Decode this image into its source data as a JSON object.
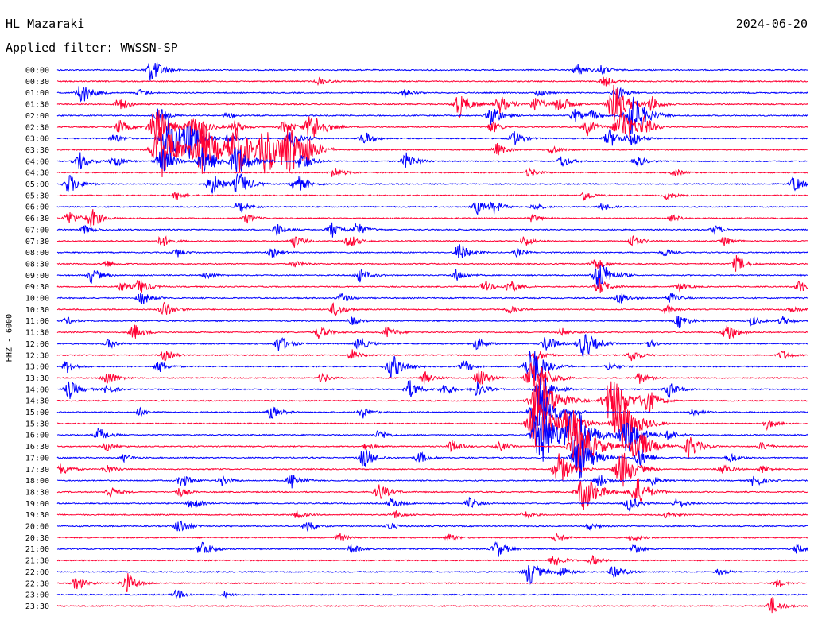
{
  "header": {
    "station": "HL Mazaraki",
    "date": "2024-06-20",
    "filter": "Applied filter: WWSSN-SP"
  },
  "y_axis_label": "HHZ - 6000",
  "colors": {
    "odd_trace": "#0000ff",
    "even_trace": "#ff0033"
  },
  "chart_data": {
    "type": "line",
    "title": "",
    "xlabel": "",
    "ylabel": "HHZ - 6000",
    "trace_length_minutes": 30,
    "xlim": [
      0,
      30
    ],
    "rows": [
      {
        "label": "00:00",
        "events": [
          [
            3.8,
            1.6
          ],
          [
            20.8,
            0.8
          ],
          [
            21.8,
            0.6
          ]
        ]
      },
      {
        "label": "00:30",
        "events": [
          [
            10.5,
            0.5
          ],
          [
            21.9,
            0.7
          ]
        ]
      },
      {
        "label": "01:00",
        "events": [
          [
            1.0,
            1.4
          ],
          [
            3.3,
            0.5
          ],
          [
            13.9,
            0.6
          ],
          [
            19.3,
            0.5
          ],
          [
            22.4,
            0.9
          ]
        ]
      },
      {
        "label": "01:30",
        "events": [
          [
            2.5,
            0.9
          ],
          [
            16.1,
            1.6
          ],
          [
            17.7,
            1.2
          ],
          [
            19.1,
            1.0
          ],
          [
            20.1,
            1.2
          ],
          [
            22.3,
            2.6
          ],
          [
            23.8,
            0.9
          ]
        ]
      },
      {
        "label": "02:00",
        "events": [
          [
            4.1,
            1.0
          ],
          [
            6.8,
            0.5
          ],
          [
            17.4,
            1.3
          ],
          [
            20.7,
            0.8
          ],
          [
            21.4,
            0.6
          ],
          [
            23.0,
            2.7
          ]
        ]
      },
      {
        "label": "02:30",
        "events": [
          [
            2.5,
            0.9
          ],
          [
            4.0,
            2.6
          ],
          [
            5.5,
            1.8
          ],
          [
            7.1,
            0.8
          ],
          [
            9.1,
            1.0
          ],
          [
            10.2,
            2.0
          ],
          [
            17.4,
            0.8
          ],
          [
            21.2,
            1.1
          ],
          [
            22.6,
            2.4
          ],
          [
            23.5,
            1.0
          ]
        ]
      },
      {
        "label": "03:00",
        "events": [
          [
            2.3,
            0.6
          ],
          [
            4.5,
            2.9
          ],
          [
            5.3,
            2.1
          ],
          [
            6.9,
            0.7
          ],
          [
            9.4,
            1.2
          ],
          [
            12.3,
            0.9
          ],
          [
            18.3,
            0.9
          ],
          [
            22.1,
            1.2
          ],
          [
            23.0,
            1.0
          ]
        ]
      },
      {
        "label": "03:30",
        "events": [
          [
            4.2,
            3.5
          ],
          [
            5.8,
            3.5
          ],
          [
            7.2,
            3.4
          ],
          [
            8.4,
            2.8
          ],
          [
            9.3,
            3.0
          ],
          [
            10.0,
            1.2
          ],
          [
            17.6,
            0.8
          ],
          [
            19.8,
            0.6
          ]
        ]
      },
      {
        "label": "04:00",
        "events": [
          [
            0.9,
            1.2
          ],
          [
            2.3,
            0.8
          ],
          [
            4.2,
            1.7
          ],
          [
            5.9,
            2.0
          ],
          [
            7.2,
            2.1
          ],
          [
            9.8,
            1.2
          ],
          [
            14.0,
            1.1
          ],
          [
            20.2,
            0.8
          ],
          [
            23.2,
            0.7
          ]
        ]
      },
      {
        "label": "04:30",
        "events": [
          [
            11.1,
            0.8
          ],
          [
            18.9,
            0.6
          ],
          [
            24.7,
            0.5
          ]
        ]
      },
      {
        "label": "05:00",
        "events": [
          [
            0.5,
            1.3
          ],
          [
            6.2,
            1.4
          ],
          [
            7.3,
            1.5
          ],
          [
            9.6,
            1.2
          ],
          [
            29.5,
            1.0
          ]
        ]
      },
      {
        "label": "05:30",
        "events": [
          [
            4.8,
            0.6
          ],
          [
            21.1,
            0.7
          ],
          [
            24.4,
            0.5
          ]
        ]
      },
      {
        "label": "06:00",
        "events": [
          [
            7.3,
            0.9
          ],
          [
            16.8,
            0.9
          ],
          [
            17.5,
            0.8
          ],
          [
            19.1,
            0.5
          ],
          [
            21.8,
            0.5
          ]
        ]
      },
      {
        "label": "06:30",
        "events": [
          [
            0.5,
            1.0
          ],
          [
            1.4,
            1.2
          ],
          [
            7.6,
            0.6
          ],
          [
            19.0,
            0.5
          ],
          [
            24.6,
            0.5
          ]
        ]
      },
      {
        "label": "07:00",
        "events": [
          [
            1.1,
            0.6
          ],
          [
            8.8,
            0.8
          ],
          [
            11.0,
            1.0
          ],
          [
            12.0,
            0.9
          ],
          [
            26.3,
            0.6
          ]
        ]
      },
      {
        "label": "07:30",
        "events": [
          [
            4.2,
            0.8
          ],
          [
            9.5,
            0.8
          ],
          [
            11.7,
            0.9
          ],
          [
            18.7,
            0.7
          ],
          [
            23.0,
            0.8
          ],
          [
            26.7,
            0.6
          ]
        ]
      },
      {
        "label": "08:00",
        "events": [
          [
            4.8,
            0.6
          ],
          [
            8.6,
            0.6
          ],
          [
            16.1,
            1.2
          ],
          [
            18.4,
            0.5
          ],
          [
            24.3,
            0.5
          ]
        ]
      },
      {
        "label": "08:30",
        "events": [
          [
            2.0,
            0.5
          ],
          [
            9.5,
            0.5
          ],
          [
            21.5,
            0.9
          ],
          [
            27.2,
            1.1
          ]
        ]
      },
      {
        "label": "09:00",
        "events": [
          [
            1.4,
            1.0
          ],
          [
            6.0,
            0.5
          ],
          [
            12.1,
            0.9
          ],
          [
            16.0,
            0.8
          ],
          [
            21.7,
            1.9
          ]
        ]
      },
      {
        "label": "09:30",
        "events": [
          [
            2.6,
            0.6
          ],
          [
            3.3,
            1.0
          ],
          [
            17.1,
            0.7
          ],
          [
            18.1,
            0.9
          ],
          [
            21.7,
            1.0
          ],
          [
            24.9,
            0.6
          ],
          [
            29.7,
            0.8
          ]
        ]
      },
      {
        "label": "10:00",
        "events": [
          [
            3.4,
            0.9
          ],
          [
            11.4,
            0.6
          ],
          [
            22.5,
            0.8
          ],
          [
            24.5,
            0.7
          ]
        ]
      },
      {
        "label": "10:30",
        "events": [
          [
            4.3,
            1.0
          ],
          [
            11.1,
            0.9
          ],
          [
            18.1,
            0.5
          ],
          [
            24.4,
            0.6
          ],
          [
            29.4,
            0.5
          ]
        ]
      },
      {
        "label": "11:00",
        "events": [
          [
            0.4,
            0.5
          ],
          [
            11.8,
            0.5
          ],
          [
            24.9,
            0.9
          ],
          [
            27.8,
            0.6
          ],
          [
            29.0,
            0.6
          ]
        ]
      },
      {
        "label": "11:30",
        "events": [
          [
            3.1,
            1.0
          ],
          [
            10.5,
            0.9
          ],
          [
            13.2,
            0.8
          ],
          [
            20.2,
            0.5
          ],
          [
            26.8,
            1.2
          ]
        ]
      },
      {
        "label": "12:00",
        "events": [
          [
            2.1,
            0.6
          ],
          [
            8.9,
            1.1
          ],
          [
            12.1,
            0.9
          ],
          [
            16.8,
            0.8
          ],
          [
            19.6,
            1.1
          ],
          [
            21.1,
            1.8
          ],
          [
            23.6,
            0.6
          ]
        ]
      },
      {
        "label": "12:30",
        "events": [
          [
            4.3,
            0.7
          ],
          [
            11.8,
            0.7
          ],
          [
            19.2,
            0.9
          ],
          [
            23.0,
            0.8
          ],
          [
            29.0,
            0.6
          ]
        ]
      },
      {
        "label": "13:00",
        "events": [
          [
            0.4,
            0.8
          ],
          [
            4.1,
            0.8
          ],
          [
            13.4,
            1.6
          ],
          [
            16.3,
            0.8
          ],
          [
            19.0,
            2.5
          ],
          [
            22.1,
            0.6
          ]
        ]
      },
      {
        "label": "13:30",
        "events": [
          [
            2.0,
            1.0
          ],
          [
            10.6,
            0.6
          ],
          [
            14.7,
            0.8
          ],
          [
            16.9,
            1.2
          ],
          [
            19.1,
            2.6
          ],
          [
            23.3,
            0.7
          ]
        ]
      },
      {
        "label": "14:00",
        "events": [
          [
            0.5,
            1.2
          ],
          [
            2.0,
            0.6
          ],
          [
            14.1,
            1.2
          ],
          [
            15.5,
            0.8
          ],
          [
            16.8,
            1.0
          ],
          [
            19.4,
            1.8
          ],
          [
            24.5,
            1.0
          ]
        ]
      },
      {
        "label": "14:30",
        "events": [
          [
            19.3,
            3.5
          ],
          [
            22.2,
            3.2
          ],
          [
            23.6,
            1.5
          ]
        ]
      },
      {
        "label": "15:00",
        "events": [
          [
            3.3,
            0.6
          ],
          [
            8.6,
            0.9
          ],
          [
            12.2,
            0.8
          ],
          [
            19.3,
            3.4
          ],
          [
            25.4,
            0.6
          ]
        ]
      },
      {
        "label": "15:30",
        "events": [
          [
            19.2,
            3.4
          ],
          [
            20.5,
            2.1
          ],
          [
            22.6,
            3.2
          ],
          [
            28.4,
            0.7
          ]
        ]
      },
      {
        "label": "16:00",
        "events": [
          [
            1.7,
            0.9
          ],
          [
            12.9,
            0.7
          ],
          [
            19.4,
            3.6
          ],
          [
            20.7,
            3.5
          ],
          [
            22.8,
            2.6
          ],
          [
            24.5,
            0.7
          ]
        ]
      },
      {
        "label": "16:30",
        "events": [
          [
            2.0,
            0.6
          ],
          [
            12.4,
            0.5
          ],
          [
            15.8,
            0.8
          ],
          [
            17.7,
            0.6
          ],
          [
            20.9,
            3.5
          ],
          [
            23.2,
            2.5
          ],
          [
            25.3,
            1.5
          ],
          [
            28.2,
            0.6
          ]
        ]
      },
      {
        "label": "17:00",
        "events": [
          [
            2.7,
            0.5
          ],
          [
            12.3,
            1.3
          ],
          [
            14.5,
            0.8
          ],
          [
            20.9,
            2.8
          ],
          [
            23.3,
            1.3
          ],
          [
            26.9,
            0.7
          ]
        ]
      },
      {
        "label": "17:30",
        "events": [
          [
            0.2,
            0.8
          ],
          [
            2.0,
            0.6
          ],
          [
            20.1,
            2.0
          ],
          [
            22.6,
            2.4
          ],
          [
            26.6,
            0.7
          ],
          [
            28.2,
            0.5
          ]
        ]
      },
      {
        "label": "18:00",
        "events": [
          [
            5.0,
            0.9
          ],
          [
            6.6,
            0.7
          ],
          [
            9.4,
            1.0
          ],
          [
            21.7,
            0.9
          ],
          [
            23.8,
            0.6
          ],
          [
            27.9,
            0.9
          ]
        ]
      },
      {
        "label": "18:30",
        "events": [
          [
            2.1,
            0.8
          ],
          [
            4.9,
            0.6
          ],
          [
            12.9,
            1.1
          ],
          [
            21.1,
            2.5
          ],
          [
            23.2,
            1.9
          ]
        ]
      },
      {
        "label": "19:00",
        "events": [
          [
            5.4,
            0.8
          ],
          [
            13.4,
            0.8
          ],
          [
            16.5,
            0.7
          ],
          [
            22.9,
            1.0
          ],
          [
            24.8,
            0.7
          ]
        ]
      },
      {
        "label": "19:30",
        "events": [
          [
            9.6,
            0.5
          ],
          [
            13.5,
            0.6
          ],
          [
            18.7,
            0.5
          ],
          [
            24.4,
            0.5
          ]
        ]
      },
      {
        "label": "20:00",
        "events": [
          [
            4.9,
            1.0
          ],
          [
            10.0,
            0.8
          ],
          [
            13.3,
            0.5
          ],
          [
            21.3,
            0.5
          ]
        ]
      },
      {
        "label": "20:30",
        "events": [
          [
            11.3,
            0.5
          ],
          [
            15.7,
            0.5
          ],
          [
            20.0,
            0.6
          ],
          [
            23.0,
            0.5
          ]
        ]
      },
      {
        "label": "21:00",
        "events": [
          [
            5.8,
            1.1
          ],
          [
            11.8,
            0.6
          ],
          [
            17.6,
            1.1
          ],
          [
            23.1,
            0.7
          ],
          [
            29.6,
            0.6
          ]
        ]
      },
      {
        "label": "21:30",
        "events": [
          [
            19.9,
            0.9
          ],
          [
            21.4,
            0.6
          ]
        ]
      },
      {
        "label": "22:00",
        "events": [
          [
            18.9,
            1.6
          ],
          [
            20.2,
            0.7
          ],
          [
            22.3,
            1.0
          ],
          [
            26.5,
            0.5
          ]
        ]
      },
      {
        "label": "22:30",
        "events": [
          [
            0.8,
            0.9
          ],
          [
            2.8,
            1.3
          ],
          [
            28.8,
            0.5
          ]
        ]
      },
      {
        "label": "23:00",
        "events": [
          [
            4.8,
            0.6
          ],
          [
            6.7,
            0.4
          ]
        ]
      },
      {
        "label": "23:30",
        "events": [
          [
            28.6,
            1.1
          ]
        ]
      }
    ]
  }
}
